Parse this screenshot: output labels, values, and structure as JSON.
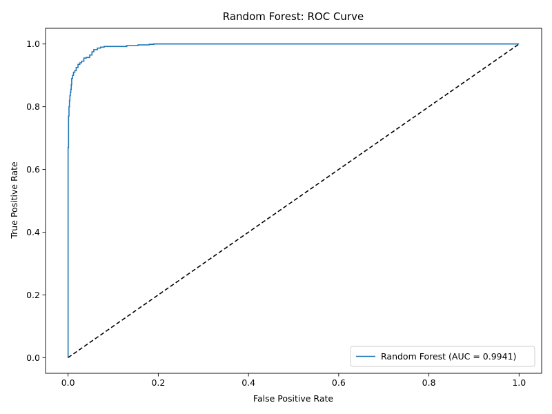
{
  "chart_data": {
    "type": "line",
    "title": "Random Forest: ROC Curve",
    "xlabel": "False Positive Rate",
    "ylabel": "True Positive Rate",
    "xlim": [
      -0.05,
      1.05
    ],
    "ylim": [
      -0.05,
      1.05
    ],
    "xticks": [
      0.0,
      0.2,
      0.4,
      0.6,
      0.8,
      1.0
    ],
    "yticks": [
      0.0,
      0.2,
      0.4,
      0.6,
      0.8,
      1.0
    ],
    "xtick_labels": [
      "0.0",
      "0.2",
      "0.4",
      "0.6",
      "0.8",
      "1.0"
    ],
    "ytick_labels": [
      "0.0",
      "0.2",
      "0.4",
      "0.6",
      "0.8",
      "1.0"
    ],
    "grid": false,
    "legend_position": "lower-right",
    "series": [
      {
        "name": "Random Forest (AUC = 0.9941)",
        "color": "#1f77b4",
        "style": "solid",
        "x": [
          0.0,
          0.0,
          0.001,
          0.001,
          0.002,
          0.002,
          0.003,
          0.003,
          0.004,
          0.004,
          0.005,
          0.005,
          0.006,
          0.006,
          0.007,
          0.007,
          0.008,
          0.008,
          0.01,
          0.01,
          0.012,
          0.012,
          0.015,
          0.015,
          0.018,
          0.018,
          0.022,
          0.022,
          0.026,
          0.026,
          0.03,
          0.03,
          0.035,
          0.035,
          0.04,
          0.04,
          0.048,
          0.048,
          0.053,
          0.053,
          0.057,
          0.057,
          0.065,
          0.065,
          0.072,
          0.072,
          0.08,
          0.08,
          0.13,
          0.13,
          0.155,
          0.155,
          0.18,
          0.18,
          0.19,
          0.19,
          1.0
        ],
        "y": [
          0.0,
          0.67,
          0.67,
          0.77,
          0.77,
          0.8,
          0.8,
          0.82,
          0.82,
          0.835,
          0.835,
          0.845,
          0.845,
          0.855,
          0.855,
          0.87,
          0.87,
          0.89,
          0.89,
          0.9,
          0.9,
          0.91,
          0.91,
          0.915,
          0.915,
          0.925,
          0.925,
          0.935,
          0.935,
          0.94,
          0.94,
          0.945,
          0.945,
          0.955,
          0.955,
          0.957,
          0.957,
          0.965,
          0.965,
          0.975,
          0.975,
          0.982,
          0.982,
          0.987,
          0.987,
          0.99,
          0.99,
          0.992,
          0.992,
          0.995,
          0.995,
          0.997,
          0.997,
          0.999,
          0.999,
          1.0,
          1.0
        ]
      },
      {
        "color": "#000000",
        "style": "dashed",
        "x": [
          0.0,
          1.0
        ],
        "y": [
          0.0,
          1.0
        ]
      }
    ]
  }
}
